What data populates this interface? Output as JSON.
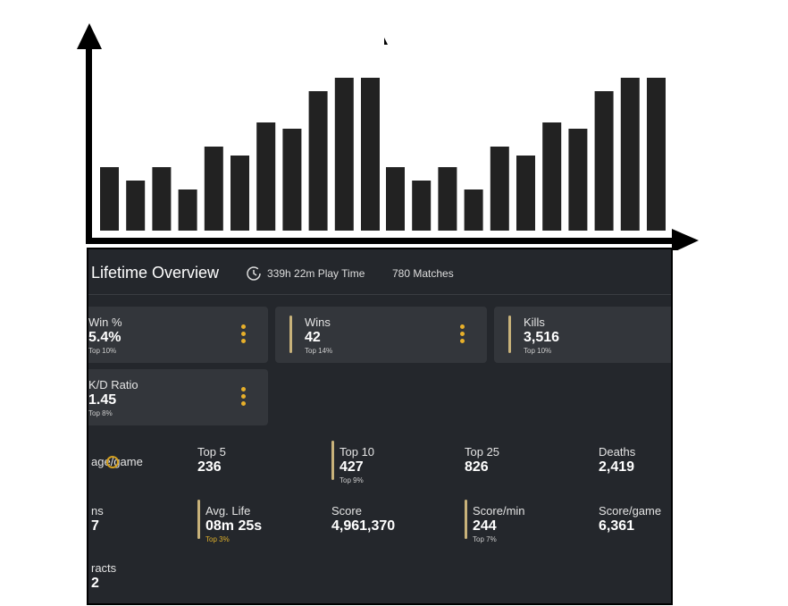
{
  "header": {
    "title": "Lifetime Overview",
    "play_time": "339h 22m Play Time",
    "matches": "780 Matches"
  },
  "cards": [
    {
      "label": "Win %",
      "value": "5.4%",
      "rank": "Top 10%"
    },
    {
      "label": "Wins",
      "value": "42",
      "rank": "Top 14%"
    },
    {
      "label": "Kills",
      "value": "3,516",
      "rank": "Top 10%"
    },
    {
      "label": "K/D Ratio",
      "value": "1.45",
      "rank": "Top 8%"
    }
  ],
  "stats": [
    {
      "label": "age/game"
    },
    {
      "label": "Top 5",
      "value": "236"
    },
    {
      "label": "Top 10",
      "value": "427",
      "rank": "Top 9%"
    },
    {
      "label": "Top 25",
      "value": "826"
    },
    {
      "label": "Deaths",
      "value": "2,419"
    },
    {
      "label": "ns",
      "value": "7"
    },
    {
      "label": "Avg. Life",
      "value": "08m 25s",
      "rank": "Top 3%"
    },
    {
      "label": "Score",
      "value": "4,961,370"
    },
    {
      "label": "Score/min",
      "value": "244",
      "rank": "Top 7%"
    },
    {
      "label": "Score/game",
      "value": "6,361"
    },
    {
      "label": "racts",
      "value": "2"
    }
  ]
}
